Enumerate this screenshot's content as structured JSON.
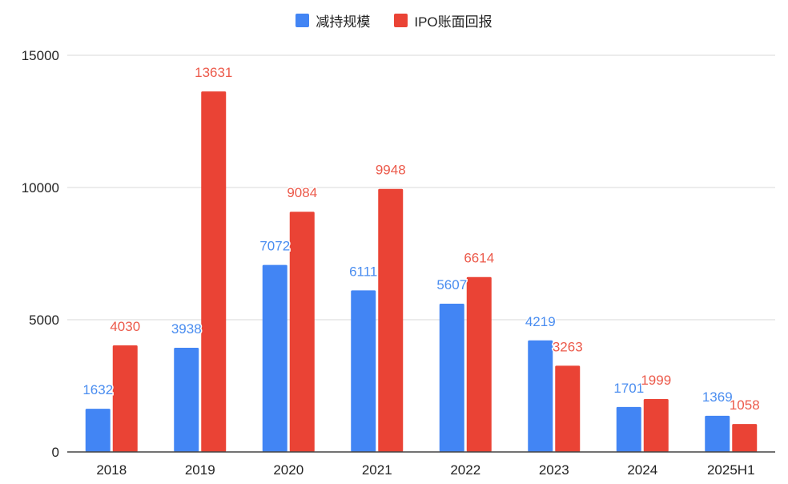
{
  "chart_data": {
    "type": "bar",
    "title": "",
    "xlabel": "",
    "ylabel": "",
    "categories": [
      "2018",
      "2019",
      "2020",
      "2021",
      "2022",
      "2023",
      "2024",
      "2025H1"
    ],
    "series": [
      {
        "name": "减持规模",
        "color": "#4285f4",
        "label_color": "#4a8df0",
        "values": [
          1632,
          3938,
          7072,
          6111,
          5607,
          4219,
          1701,
          1369
        ]
      },
      {
        "name": "IPO账面回报",
        "color": "#ea4335",
        "label_color": "#ec5a4b",
        "values": [
          4030,
          13631,
          9084,
          9948,
          6614,
          3263,
          1999,
          1058
        ]
      }
    ],
    "ylim": [
      0,
      15000
    ],
    "yticks": [
      0,
      5000,
      10000,
      15000
    ],
    "grid": true,
    "legend_position": "top-center",
    "data_labels": true
  }
}
